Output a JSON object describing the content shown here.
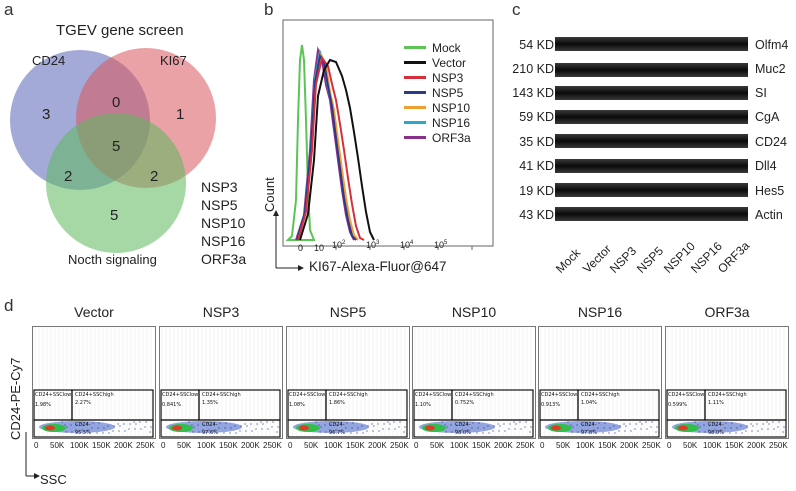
{
  "panels": {
    "a": "a",
    "b": "b",
    "c": "c",
    "d": "d"
  },
  "venn": {
    "title": "TGEV gene screen",
    "sets": [
      {
        "label": "CD24",
        "color": "#5a64b8"
      },
      {
        "label": "KI67",
        "color": "#d8555c"
      },
      {
        "label": "Nocth signaling",
        "color": "#5cb85c"
      }
    ],
    "counts": {
      "cd24_only": "3",
      "ki67_only": "1",
      "cd24_ki67": "0",
      "all": "5",
      "cd24_notch": "2",
      "ki67_notch": "2",
      "notch_only": "5"
    },
    "genes": [
      "NSP3",
      "NSP5",
      "NSP10",
      "NSP16",
      "ORF3a"
    ]
  },
  "histogram": {
    "ylabel": "Count",
    "xlabel": "KI67-Alexa-Fluor@647",
    "xticks": [
      "0",
      "10",
      "10",
      "10",
      "10",
      "10"
    ],
    "xtick_exps": [
      "",
      "2",
      "3",
      "4",
      "5"
    ],
    "legend": [
      {
        "name": "Mock",
        "color": "#5cc455"
      },
      {
        "name": "Vector",
        "color": "#111111"
      },
      {
        "name": "NSP3",
        "color": "#d62f3c"
      },
      {
        "name": "NSP5",
        "color": "#2b3a8a"
      },
      {
        "name": "NSP10",
        "color": "#f0a030"
      },
      {
        "name": "NSP16",
        "color": "#2aa9c6"
      },
      {
        "name": "ORF3a",
        "color": "#8a2f8a"
      }
    ]
  },
  "western": {
    "rows": [
      {
        "kd": "54 KD",
        "protein": "Olfm4"
      },
      {
        "kd": "210 KD",
        "protein": "Muc2"
      },
      {
        "kd": "143 KD",
        "protein": "SI"
      },
      {
        "kd": "59 KD",
        "protein": "CgA"
      },
      {
        "kd": "35 KD",
        "protein": "CD24"
      },
      {
        "kd": "41 KD",
        "protein": "Dll4"
      },
      {
        "kd": "19 KD",
        "protein": "Hes5"
      },
      {
        "kd": "43 KD",
        "protein": "Actin"
      }
    ],
    "lanes": [
      "Mock",
      "Vector",
      "NSP3",
      "NSP5",
      "NSP10",
      "NSP16",
      "ORF3a"
    ]
  },
  "flow": {
    "ylabel": "CD24-PE-Cy7",
    "xlabel": "SSC",
    "xticks": [
      "0",
      "50K",
      "100K",
      "150K",
      "200K",
      "250K"
    ],
    "gate_low": "CD24+SSClow",
    "gate_high": "CD24+SSChigh",
    "gate_neg": "CD24-",
    "panels": [
      {
        "title": "Vector",
        "low": "1.98%",
        "high": "2.27%",
        "neg": "95.5%"
      },
      {
        "title": "NSP3",
        "low": "0.841%",
        "high": "1.35%",
        "neg": "97.6%"
      },
      {
        "title": "NSP5",
        "low": "1.08%",
        "high": "1.86%",
        "neg": "96.7%"
      },
      {
        "title": "NSP10",
        "low": "1.10%",
        "high": "0.752%",
        "neg": "98.0%"
      },
      {
        "title": "NSP16",
        "low": "0.913%",
        "high": "1.04%",
        "neg": "97.8%"
      },
      {
        "title": "ORF3a",
        "low": "0.599%",
        "high": "1.11%",
        "neg": "98.0%"
      }
    ]
  }
}
